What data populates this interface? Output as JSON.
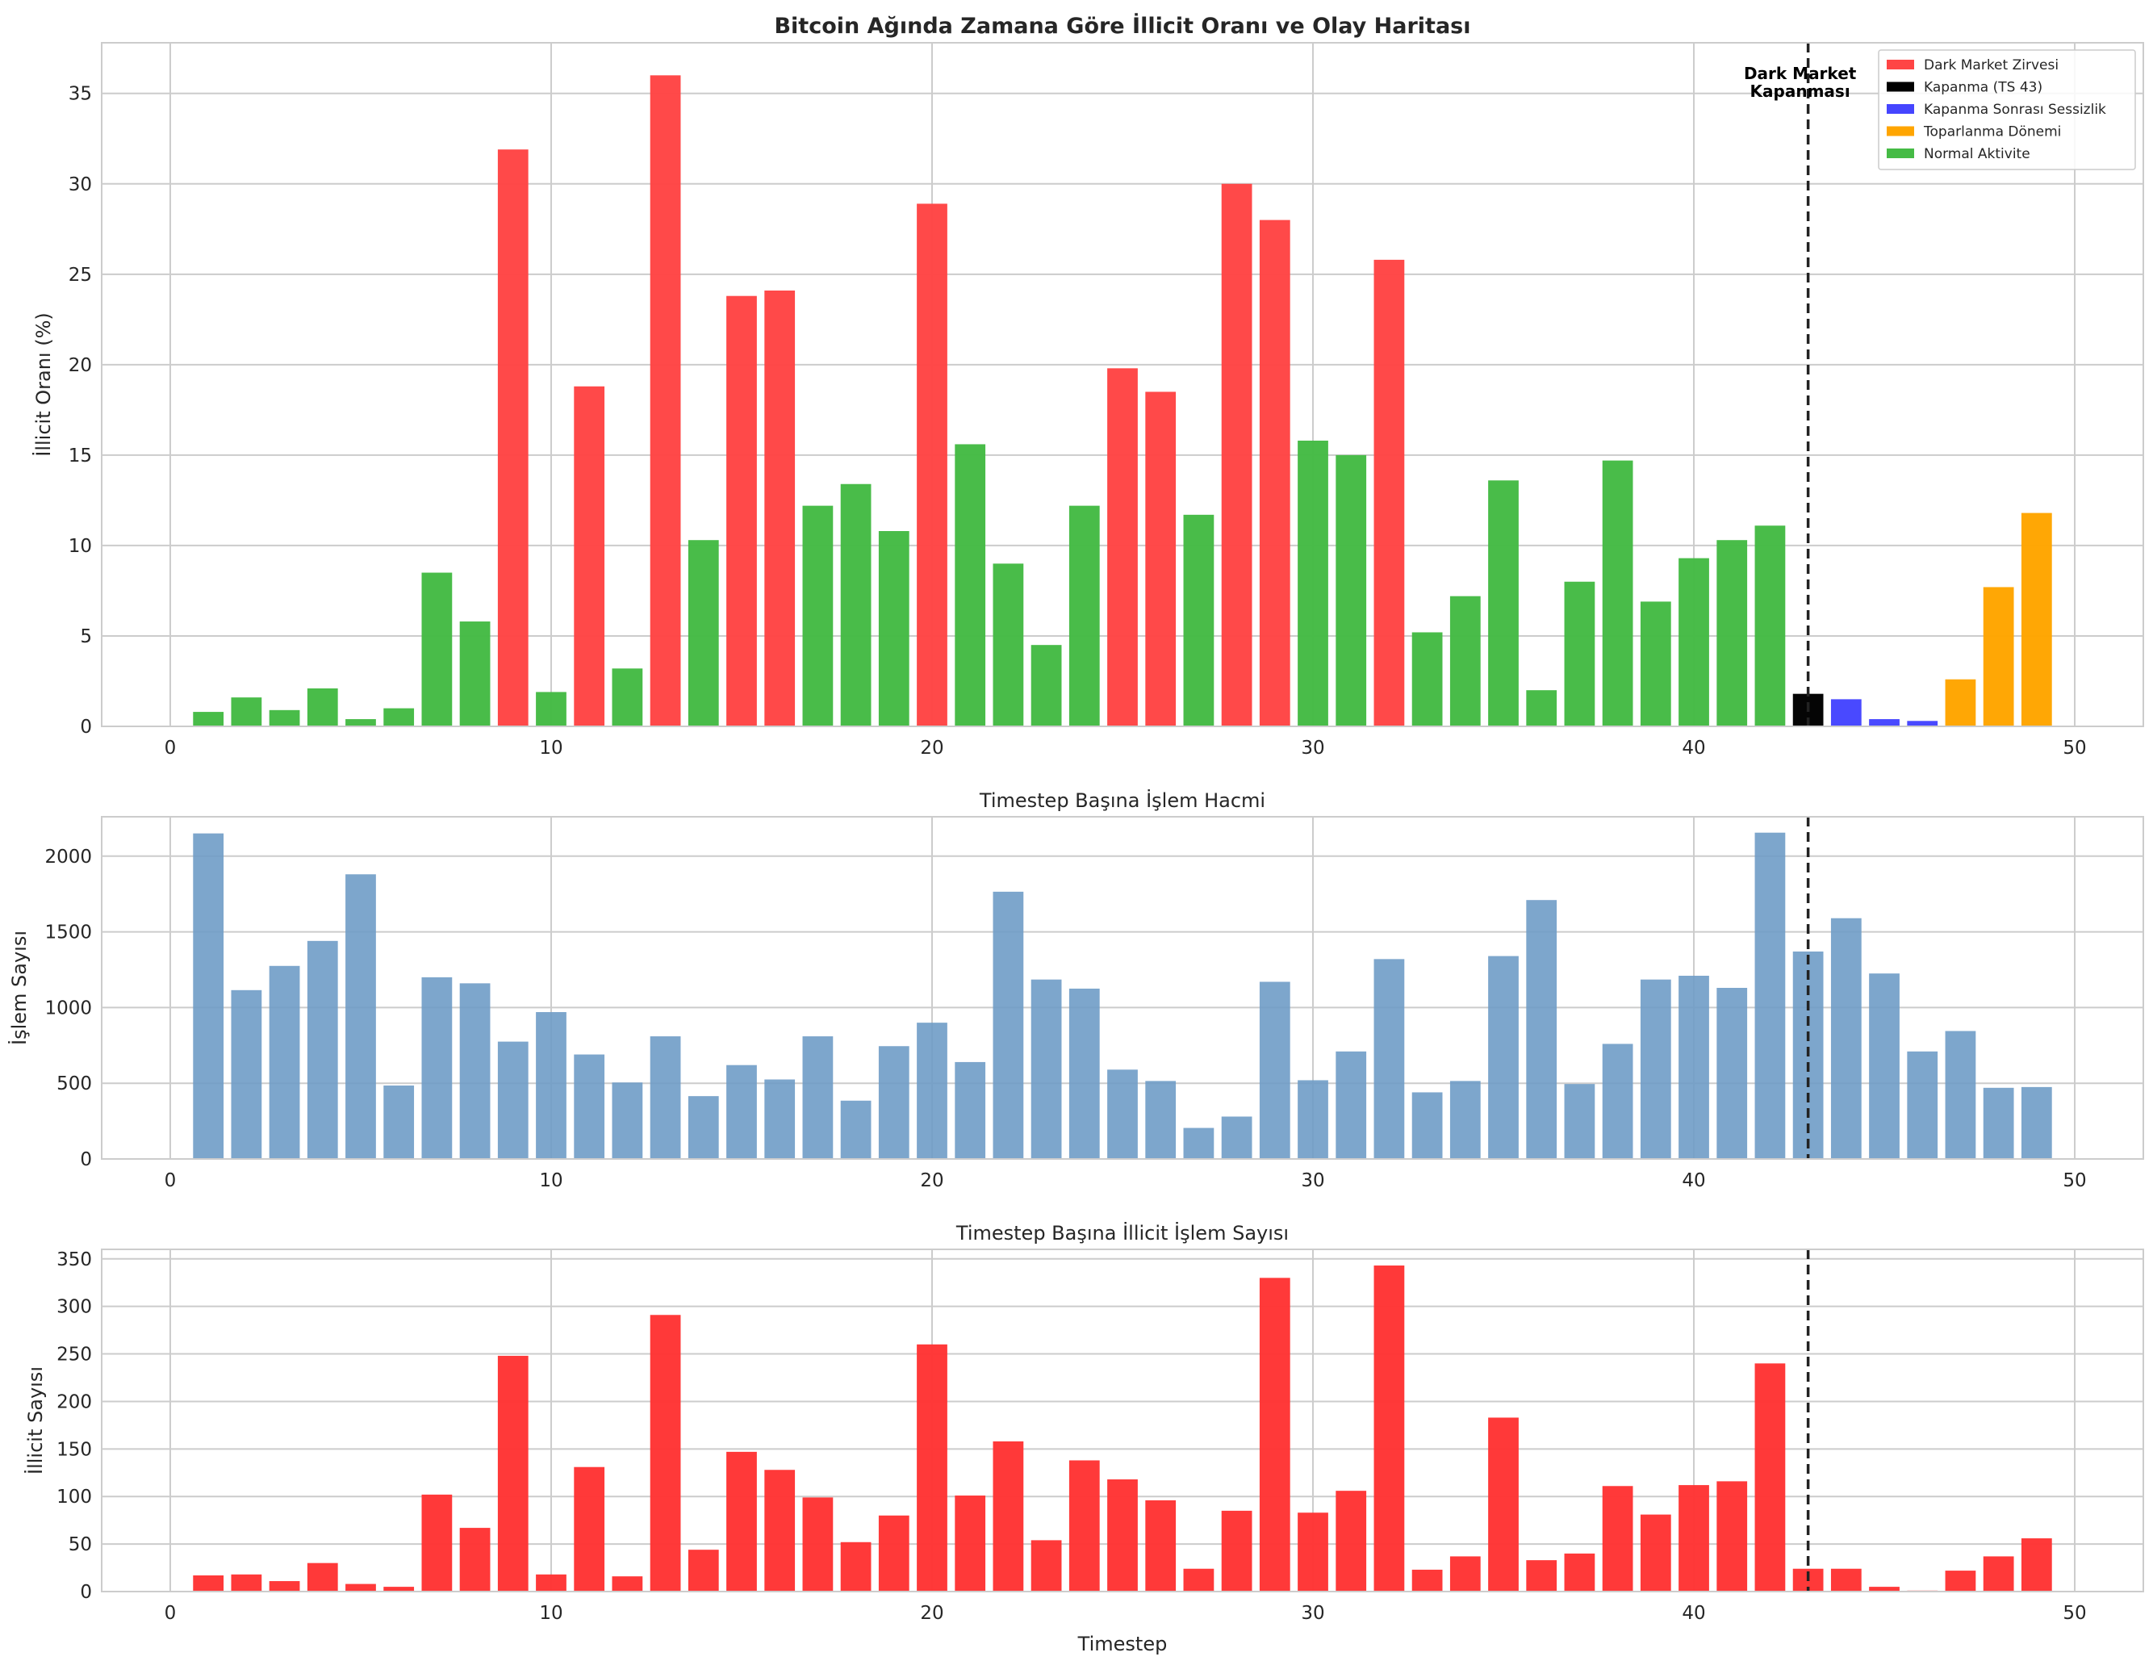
{
  "chart_data": [
    {
      "type": "bar",
      "title": "Bitcoin Ağında Zamana Göre İllicit Oranı ve Olay Haritası",
      "xlabel": "",
      "ylabel": "İllicit Oranı (%)",
      "xlim": [
        -1.8,
        51.8
      ],
      "ylim": [
        0,
        37.8
      ],
      "xticks": [
        0,
        10,
        20,
        30,
        40,
        50
      ],
      "yticks": [
        0,
        5,
        10,
        15,
        20,
        25,
        30,
        35
      ],
      "grid": true,
      "legend_position": "top-right",
      "x": [
        1,
        2,
        3,
        4,
        5,
        6,
        7,
        8,
        9,
        10,
        11,
        12,
        13,
        14,
        15,
        16,
        17,
        18,
        19,
        20,
        21,
        22,
        23,
        24,
        25,
        26,
        27,
        28,
        29,
        30,
        31,
        32,
        33,
        34,
        35,
        36,
        37,
        38,
        39,
        40,
        41,
        42,
        43,
        44,
        45,
        46,
        47,
        48,
        49
      ],
      "values": [
        0.8,
        1.6,
        0.9,
        2.1,
        0.4,
        1.0,
        8.5,
        5.8,
        31.9,
        1.9,
        18.8,
        3.2,
        36.0,
        10.3,
        23.8,
        24.1,
        12.2,
        13.4,
        10.8,
        28.9,
        15.6,
        9.0,
        4.5,
        12.2,
        19.8,
        18.5,
        11.7,
        30.0,
        28.0,
        15.8,
        15.0,
        25.8,
        5.2,
        7.2,
        13.6,
        2.0,
        8.0,
        14.7,
        6.9,
        9.3,
        10.3,
        11.1,
        1.8,
        1.5,
        0.4,
        0.3,
        2.6,
        7.7,
        11.8
      ],
      "categories": [
        "normal",
        "normal",
        "normal",
        "normal",
        "normal",
        "normal",
        "normal",
        "normal",
        "peak",
        "normal",
        "peak",
        "normal",
        "peak",
        "normal",
        "peak",
        "peak",
        "normal",
        "normal",
        "normal",
        "peak",
        "normal",
        "normal",
        "normal",
        "normal",
        "peak",
        "peak",
        "normal",
        "peak",
        "peak",
        "normal",
        "normal",
        "peak",
        "normal",
        "normal",
        "normal",
        "normal",
        "normal",
        "normal",
        "normal",
        "normal",
        "normal",
        "normal",
        "closure",
        "silence",
        "silence",
        "silence",
        "recovery",
        "recovery",
        "recovery"
      ],
      "legend": [
        {
          "key": "peak",
          "name": "Dark Market Zirvesi",
          "color": "#ff4545"
        },
        {
          "key": "closure",
          "name": "Kapanma (TS 43)",
          "color": "#000000"
        },
        {
          "key": "silence",
          "name": "Kapanma Sonrası Sessizlik",
          "color": "#4545ff"
        },
        {
          "key": "recovery",
          "name": "Toparlanma Dönemi",
          "color": "#ffa500"
        },
        {
          "key": "normal",
          "name": "Normal Aktivite",
          "color": "#45bb45"
        }
      ],
      "vline": {
        "x": 43,
        "style": "dashed",
        "color": "#222222"
      },
      "annotation": {
        "lines": [
          "Dark Market",
          "Kapanması"
        ],
        "x": 43,
        "y": 35.8
      }
    },
    {
      "type": "bar",
      "title": "Timestep Başına İşlem Hacmi",
      "xlabel": "",
      "ylabel": "İşlem Sayısı",
      "xlim": [
        -1.8,
        51.8
      ],
      "ylim": [
        0,
        2260
      ],
      "xticks": [
        0,
        10,
        20,
        30,
        40,
        50
      ],
      "yticks": [
        0,
        500,
        1000,
        1500,
        2000
      ],
      "grid": true,
      "color": "#6f9cc7",
      "x": [
        1,
        2,
        3,
        4,
        5,
        6,
        7,
        8,
        9,
        10,
        11,
        12,
        13,
        14,
        15,
        16,
        17,
        18,
        19,
        20,
        21,
        22,
        23,
        24,
        25,
        26,
        27,
        28,
        29,
        30,
        31,
        32,
        33,
        34,
        35,
        36,
        37,
        38,
        39,
        40,
        41,
        42,
        43,
        44,
        45,
        46,
        47,
        48,
        49
      ],
      "values": [
        2150,
        1115,
        1275,
        1440,
        1880,
        485,
        1200,
        1160,
        775,
        970,
        690,
        505,
        810,
        415,
        620,
        525,
        810,
        385,
        745,
        900,
        640,
        1765,
        1185,
        1125,
        590,
        515,
        205,
        280,
        1170,
        520,
        710,
        1320,
        440,
        515,
        1340,
        1710,
        495,
        760,
        1185,
        1210,
        1130,
        2155,
        1370,
        1590,
        1225,
        710,
        845,
        470,
        475
      ],
      "vline": {
        "x": 43,
        "style": "dashed",
        "color": "#222222"
      }
    },
    {
      "type": "bar",
      "title": "Timestep Başına İllicit İşlem Sayısı",
      "xlabel": "Timestep",
      "ylabel": "İllicit Sayısı",
      "xlim": [
        -1.8,
        51.8
      ],
      "ylim": [
        0,
        360
      ],
      "xticks": [
        0,
        10,
        20,
        30,
        40,
        50
      ],
      "yticks": [
        0,
        50,
        100,
        150,
        200,
        250,
        300,
        350
      ],
      "grid": true,
      "color": "#ff3535",
      "x": [
        1,
        2,
        3,
        4,
        5,
        6,
        7,
        8,
        9,
        10,
        11,
        12,
        13,
        14,
        15,
        16,
        17,
        18,
        19,
        20,
        21,
        22,
        23,
        24,
        25,
        26,
        27,
        28,
        29,
        30,
        31,
        32,
        33,
        34,
        35,
        36,
        37,
        38,
        39,
        40,
        41,
        42,
        43,
        44,
        45,
        46,
        47,
        48,
        49
      ],
      "values": [
        17,
        18,
        11,
        30,
        8,
        5,
        102,
        67,
        248,
        18,
        131,
        16,
        291,
        44,
        147,
        128,
        99,
        52,
        80,
        260,
        101,
        158,
        54,
        138,
        118,
        96,
        24,
        85,
        330,
        83,
        106,
        343,
        23,
        37,
        183,
        33,
        40,
        111,
        81,
        112,
        116,
        240,
        24,
        24,
        5,
        1,
        22,
        37,
        56
      ],
      "vline": {
        "x": 43,
        "style": "dashed",
        "color": "#222222"
      }
    }
  ]
}
